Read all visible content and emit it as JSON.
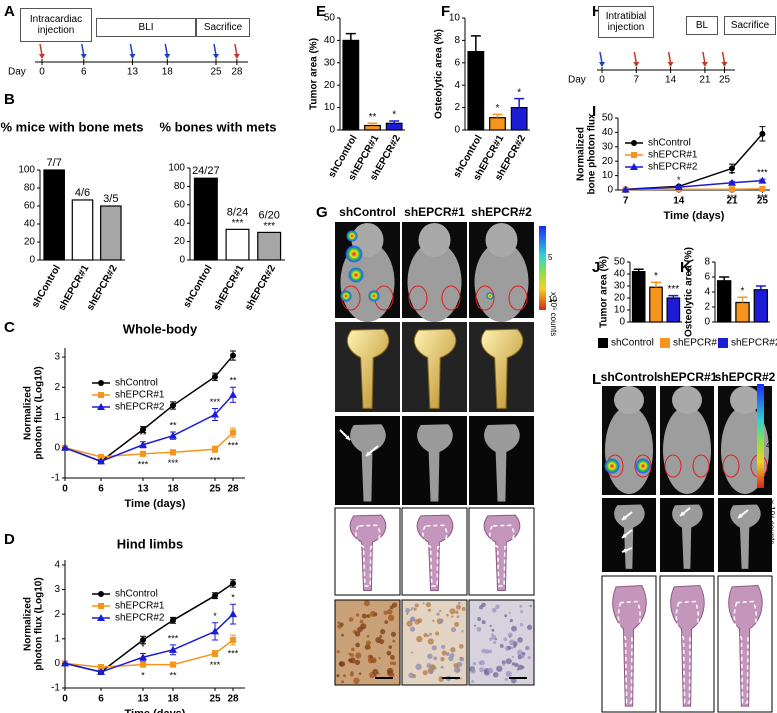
{
  "panel_labels": [
    "A",
    "B",
    "C",
    "D",
    "E",
    "F",
    "G",
    "H",
    "I",
    "J",
    "K",
    "L"
  ],
  "timeline_a": {
    "boxes": [
      "Intracardiac injection",
      "BLI",
      "Sacrifice"
    ],
    "day_label": "Day",
    "days": [
      0,
      6,
      13,
      18,
      25,
      28
    ]
  },
  "timeline_h": {
    "boxes": [
      "Intratibial injection",
      "BL",
      "Sacrifice"
    ],
    "day_label": "Day",
    "days": [
      0,
      7,
      14,
      21,
      25
    ]
  },
  "chart_data": [
    {
      "type": "bar",
      "title": "% mice with bone mets",
      "categories": [
        "shControl",
        "shEPCR#1",
        "shEPCR#2"
      ],
      "values": [
        100,
        66.7,
        60
      ],
      "value_labels": [
        "7/7",
        "4/6",
        "3/5"
      ],
      "colors": [
        "#000000",
        "#ffffff",
        "#a6a6a6"
      ],
      "ylim": [
        0,
        100
      ],
      "yticks": [
        0,
        20,
        40,
        60,
        80,
        100
      ]
    },
    {
      "type": "bar",
      "title": "% bones with mets",
      "categories": [
        "shControl",
        "shEPCR#1",
        "shEPCR#2"
      ],
      "values": [
        88.9,
        33.3,
        30
      ],
      "value_labels": [
        "24/27",
        "8/24",
        "6/20"
      ],
      "significance": [
        null,
        "***",
        "***"
      ],
      "colors": [
        "#000000",
        "#ffffff",
        "#a6a6a6"
      ],
      "ylim": [
        0,
        100
      ],
      "yticks": [
        0,
        20,
        40,
        60,
        80,
        100
      ]
    },
    {
      "type": "line",
      "title": "Whole-body",
      "xlabel": "Time (days)",
      "ylabel": [
        "Normalized",
        "photon flux (Log10)"
      ],
      "x": [
        0,
        6,
        13,
        18,
        25,
        28
      ],
      "xlim": [
        0,
        30
      ],
      "xticks": [
        0,
        6,
        13,
        18,
        25,
        28
      ],
      "ylim": [
        -1,
        3.3
      ],
      "yticks": [
        -1,
        0,
        1,
        2,
        3
      ],
      "series": [
        {
          "name": "shControl",
          "color": "#000000",
          "marker": "circle",
          "values": [
            0,
            -0.45,
            0.6,
            1.4,
            2.35,
            3.05
          ],
          "errors": [
            0,
            0.05,
            0.1,
            0.12,
            0.12,
            0.15
          ]
        },
        {
          "name": "shEPCR#1",
          "color": "#f7941d",
          "marker": "square",
          "values": [
            0,
            -0.3,
            -0.2,
            -0.15,
            -0.05,
            0.5
          ],
          "errors": [
            0,
            0.05,
            0.08,
            0.08,
            0.1,
            0.15
          ],
          "significance": [
            null,
            null,
            "***",
            "***",
            "***",
            "***"
          ]
        },
        {
          "name": "shEPCR#2",
          "color": "#1c1cd6",
          "marker": "triangle",
          "values": [
            0,
            -0.45,
            0.1,
            0.4,
            1.1,
            1.75
          ],
          "errors": [
            0,
            0.05,
            0.1,
            0.12,
            0.2,
            0.25
          ],
          "significance": [
            null,
            null,
            "**",
            "**",
            "***",
            "**"
          ]
        }
      ]
    },
    {
      "type": "line",
      "title": "Hind limbs",
      "xlabel": "Time (days)",
      "ylabel": [
        "Normalized",
        "photon flux (Log10)"
      ],
      "x": [
        0,
        6,
        13,
        18,
        25,
        28
      ],
      "xlim": [
        0,
        30
      ],
      "xticks": [
        0,
        6,
        13,
        18,
        25,
        28
      ],
      "ylim": [
        -1,
        4.2
      ],
      "yticks": [
        -1,
        0,
        1,
        2,
        3,
        4
      ],
      "series": [
        {
          "name": "shControl",
          "color": "#000000",
          "marker": "circle",
          "values": [
            0,
            -0.35,
            0.95,
            1.75,
            2.75,
            3.25
          ],
          "errors": [
            0,
            0.05,
            0.15,
            0.12,
            0.12,
            0.15
          ]
        },
        {
          "name": "shEPCR#1",
          "color": "#f7941d",
          "marker": "square",
          "values": [
            0,
            -0.15,
            -0.05,
            -0.05,
            0.4,
            0.95
          ],
          "errors": [
            0,
            0.1,
            0.1,
            0.1,
            0.12,
            0.2
          ],
          "significance": [
            null,
            null,
            "*",
            "**",
            "***",
            "***"
          ]
        },
        {
          "name": "shEPCR#2",
          "color": "#1c1cd6",
          "marker": "triangle",
          "values": [
            0,
            -0.35,
            0.25,
            0.55,
            1.3,
            2.0
          ],
          "errors": [
            0,
            0.05,
            0.15,
            0.2,
            0.35,
            0.4
          ],
          "significance": [
            null,
            null,
            "*",
            "***",
            "*",
            "*"
          ]
        }
      ]
    },
    {
      "type": "bar",
      "ylabel": "Tumor area (%)",
      "categories": [
        "shControl",
        "shEPCR#1",
        "shEPCR#2"
      ],
      "values": [
        40,
        2,
        3
      ],
      "errors": [
        3,
        1,
        1
      ],
      "significance": [
        null,
        "**",
        "*"
      ],
      "colors": [
        "#000000",
        "#f7941d",
        "#1c1cd6"
      ],
      "ylim": [
        0,
        50
      ],
      "yticks": [
        0,
        10,
        20,
        30,
        40,
        50
      ]
    },
    {
      "type": "bar",
      "ylabel": "Osteolytic area (%)",
      "categories": [
        "shControl",
        "shEPCR#1",
        "shEPCR#2"
      ],
      "values": [
        7,
        1.1,
        2
      ],
      "errors": [
        1.4,
        0.3,
        0.8
      ],
      "significance": [
        null,
        "*",
        "*"
      ],
      "colors": [
        "#000000",
        "#f7941d",
        "#1c1cd6"
      ],
      "ylim": [
        0,
        10
      ],
      "yticks": [
        0,
        2,
        4,
        6,
        8,
        10
      ]
    },
    {
      "type": "line",
      "xlabel": "Time (days)",
      "ylabel": [
        "Normalized",
        "bone photon flux"
      ],
      "x": [
        7,
        14,
        21,
        25
      ],
      "xlim": [
        6,
        26
      ],
      "xticks": [
        7,
        14,
        21,
        25
      ],
      "ylim": [
        0,
        50
      ],
      "yticks": [
        0,
        10,
        20,
        30,
        40,
        50
      ],
      "series": [
        {
          "name": "shControl",
          "color": "#000000",
          "marker": "circle",
          "values": [
            0.5,
            2.5,
            15,
            39
          ],
          "errors": [
            0.2,
            0.5,
            3,
            5
          ]
        },
        {
          "name": "shEPCR#1",
          "color": "#f7941d",
          "marker": "square",
          "values": [
            0.3,
            0.5,
            0.5,
            0.8
          ],
          "errors": [
            0.1,
            0.2,
            0.2,
            0.2
          ],
          "significance": [
            null,
            null,
            "***",
            "***"
          ]
        },
        {
          "name": "shEPCR#2",
          "color": "#1c1cd6",
          "marker": "triangle",
          "values": [
            0.3,
            2,
            5,
            6.5
          ],
          "errors": [
            0.1,
            0.4,
            1,
            1
          ],
          "significance": [
            null,
            "*",
            "*",
            "***"
          ]
        }
      ]
    },
    {
      "type": "bar",
      "ylabel": "Tumor area (%)",
      "legend": [
        "shControl",
        "shEPCR#1",
        "shEPCR#2"
      ],
      "values": [
        42,
        29,
        20
      ],
      "errors": [
        2,
        4,
        2
      ],
      "significance": [
        null,
        "*",
        "***"
      ],
      "colors": [
        "#000000",
        "#f7941d",
        "#1c1cd6"
      ],
      "ylim": [
        0,
        50
      ],
      "yticks": [
        0,
        10,
        20,
        30,
        40,
        50
      ]
    },
    {
      "type": "bar",
      "ylabel": "Osteolytic area (%)",
      "values": [
        5.5,
        2.6,
        4.3
      ],
      "errors": [
        0.5,
        0.7,
        0.5
      ],
      "significance": [
        null,
        "*",
        null
      ],
      "colors": [
        "#000000",
        "#f7941d",
        "#1c1cd6"
      ],
      "ylim": [
        0,
        8
      ],
      "yticks": [
        0,
        2,
        4,
        6,
        8
      ]
    }
  ],
  "panel_g": {
    "columns": [
      "shControl",
      "shEPCR#1",
      "shEPCR#2"
    ],
    "colorbar_ticks": [
      5,
      10
    ],
    "colorbar_unit": "x 10⁵ counts"
  },
  "panel_l": {
    "columns": [
      "shControl",
      "shEPCR#1",
      "shEPCR#2"
    ],
    "colorbar_ticks": [
      1,
      4,
      8
    ],
    "colorbar_unit": "x 10⁴ counts"
  }
}
